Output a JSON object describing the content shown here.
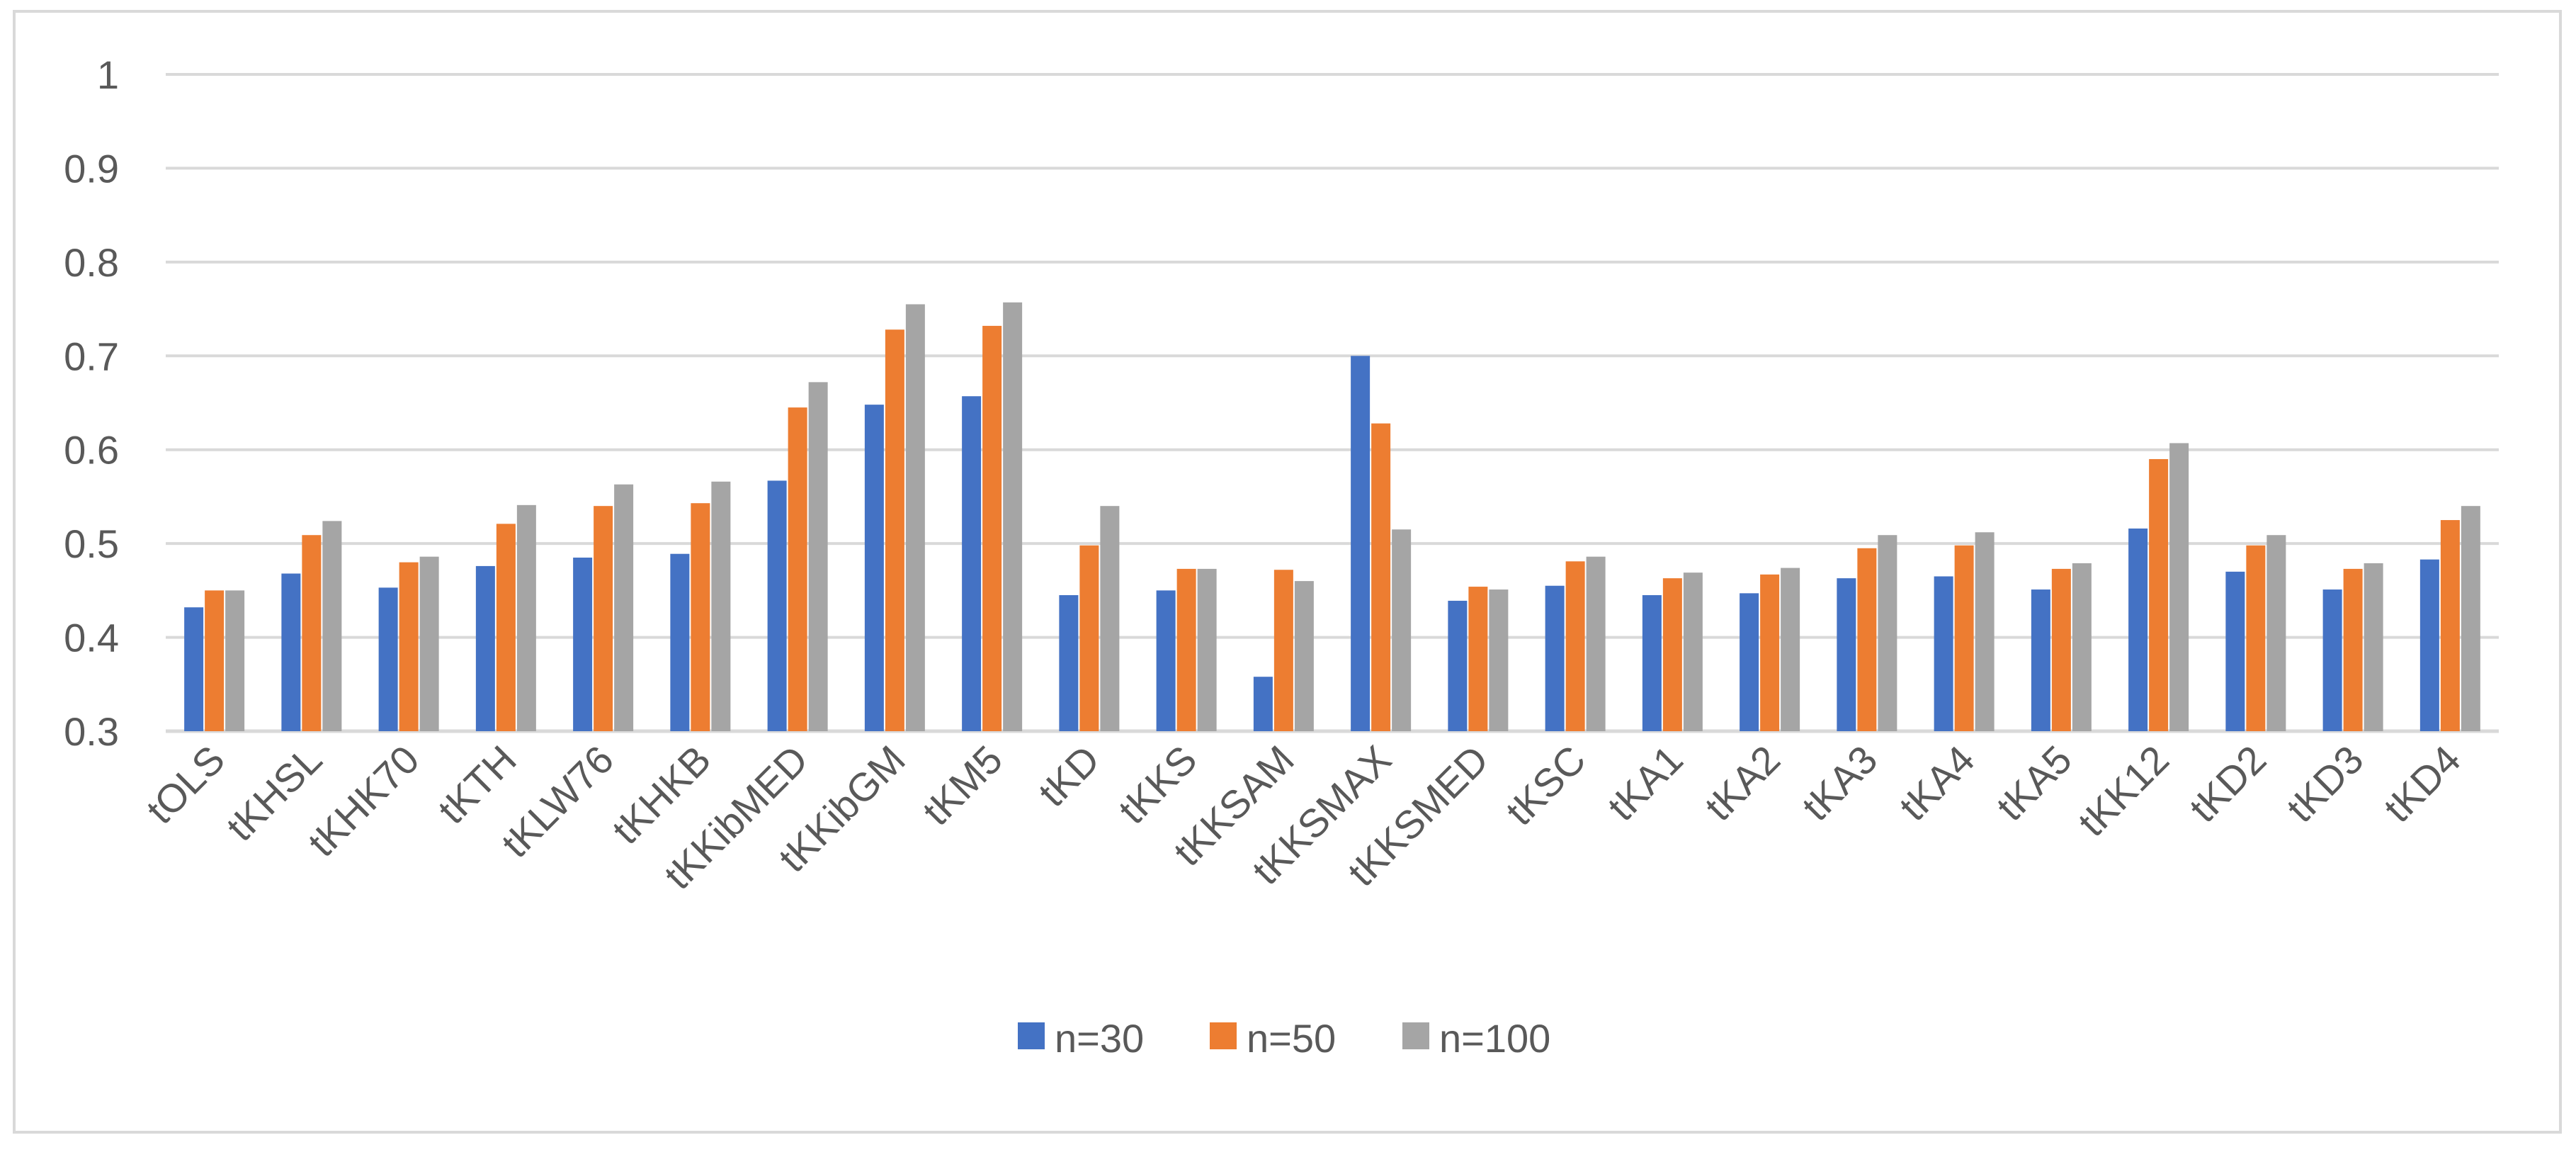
{
  "chart_data": {
    "type": "bar",
    "title": "",
    "xlabel": "",
    "ylabel": "",
    "ylim": [
      0.3,
      1.0
    ],
    "yticks": [
      "0.3",
      "0.4",
      "0.5",
      "0.6",
      "0.7",
      "0.8",
      "0.9",
      "1"
    ],
    "grid": true,
    "legend_position": "bottom",
    "categories": [
      "tOLS",
      "tKHSL",
      "tKHK70",
      "tKTH",
      "tKLW76",
      "tKHKB",
      "tKKibMED",
      "tKKibGM",
      "tKM5",
      "tKD",
      "tKKS",
      "tKKSAM",
      "tKKSMAX",
      "tKKSMED",
      "tKSC",
      "tKA1",
      "tKA2",
      "tKA3",
      "tKA4",
      "tKA5",
      "tKK12",
      "tKD2",
      "tKD3",
      "tKD4"
    ],
    "series": [
      {
        "name": "n=30",
        "color": "#4472c4",
        "values": [
          0.432,
          0.468,
          0.453,
          0.476,
          0.485,
          0.489,
          0.567,
          0.648,
          0.657,
          0.445,
          0.45,
          0.358,
          0.7,
          0.439,
          0.455,
          0.445,
          0.447,
          0.463,
          0.465,
          0.451,
          0.516,
          0.47,
          0.451,
          0.483
        ]
      },
      {
        "name": "n=50",
        "color": "#ed7d31",
        "values": [
          0.45,
          0.509,
          0.48,
          0.521,
          0.54,
          0.543,
          0.645,
          0.728,
          0.732,
          0.498,
          0.473,
          0.472,
          0.628,
          0.454,
          0.481,
          0.463,
          0.467,
          0.495,
          0.498,
          0.473,
          0.59,
          0.498,
          0.473,
          0.525
        ]
      },
      {
        "name": "n=100",
        "color": "#a5a5a5",
        "values": [
          0.45,
          0.524,
          0.486,
          0.541,
          0.563,
          0.566,
          0.672,
          0.755,
          0.757,
          0.54,
          0.473,
          0.46,
          0.515,
          0.451,
          0.486,
          0.469,
          0.474,
          0.509,
          0.512,
          0.479,
          0.607,
          0.509,
          0.479,
          0.54
        ]
      }
    ]
  }
}
